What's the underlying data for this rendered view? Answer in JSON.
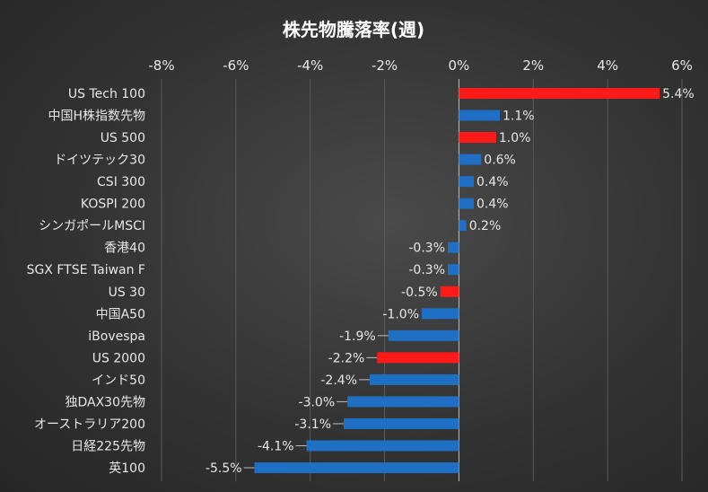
{
  "chart_data": {
    "type": "bar",
    "orientation": "horizontal",
    "title": "株先物騰落率(週)",
    "xlim": [
      -8,
      6
    ],
    "xticks": [
      "-8%",
      "-6%",
      "-4%",
      "-2%",
      "0%",
      "2%",
      "4%",
      "6%"
    ],
    "tick_values": [
      -8,
      -6,
      -4,
      -2,
      0,
      2,
      4,
      6
    ],
    "categories": [
      "US Tech 100",
      "中国H株指数先物",
      "US 500",
      "ドイツテック30",
      "CSI 300",
      "KOSPI 200",
      "シンガポールMSCI",
      "香港40",
      "SGX FTSE Taiwan F",
      "US 30",
      "中国A50",
      "iBovespa",
      "US 2000",
      "インド50",
      "独DAX30先物",
      "オーストラリア200",
      "日経225先物",
      "英100"
    ],
    "values": [
      5.4,
      1.1,
      1.0,
      0.6,
      0.4,
      0.4,
      0.2,
      -0.3,
      -0.3,
      -0.5,
      -1.0,
      -1.9,
      -2.2,
      -2.4,
      -3.0,
      -3.1,
      -4.1,
      -5.5
    ],
    "labels": [
      "5.4%",
      "1.1%",
      "1.0%",
      "0.6%",
      "0.4%",
      "0.4%",
      "0.2%",
      "-0.3%",
      "-0.3%",
      "-0.5%",
      "-1.0%",
      "-1.9%",
      "-2.2%",
      "-2.4%",
      "-3.0%",
      "-3.1%",
      "-4.1%",
      "-5.5%"
    ],
    "highlight": [
      true,
      false,
      true,
      false,
      false,
      false,
      false,
      false,
      false,
      true,
      false,
      false,
      true,
      false,
      false,
      false,
      false,
      false
    ],
    "colors": {
      "default": "#1f6fc5",
      "highlight": "#ff1a1a"
    },
    "grid": true,
    "legend": "none"
  }
}
